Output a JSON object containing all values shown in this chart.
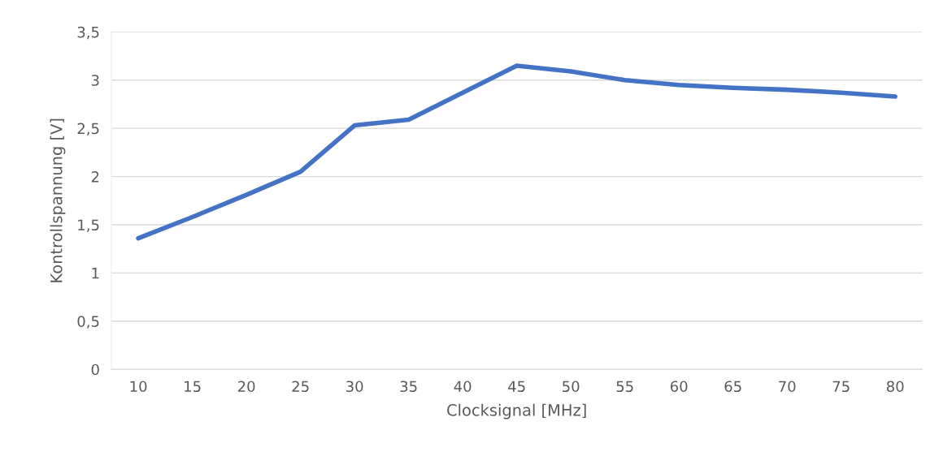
{
  "chart_data": {
    "type": "line",
    "xlabel": "Clocksignal [MHz]",
    "ylabel": "Kontrollspannung [V]",
    "categories": [
      "10",
      "15",
      "20",
      "25",
      "30",
      "35",
      "40",
      "45",
      "50",
      "55",
      "60",
      "65",
      "70",
      "75",
      "80"
    ],
    "series": [
      {
        "color": "#4472c4",
        "values": [
          1.36,
          1.58,
          1.81,
          2.05,
          2.53,
          2.59,
          2.87,
          3.15,
          3.09,
          3.0,
          2.95,
          2.92,
          2.9,
          2.87,
          2.83
        ]
      }
    ],
    "ylim": [
      0,
      3.5
    ],
    "yticks": [
      0,
      {
        "value": 0.5,
        "label": "0,5"
      },
      1,
      {
        "value": 1.5,
        "label": "1,5"
      },
      2,
      {
        "value": 2.5,
        "label": "2,5"
      },
      3,
      {
        "value": 3.5,
        "label": "3,5"
      }
    ],
    "grid": "y",
    "marker": "none",
    "line_style": "solid"
  }
}
